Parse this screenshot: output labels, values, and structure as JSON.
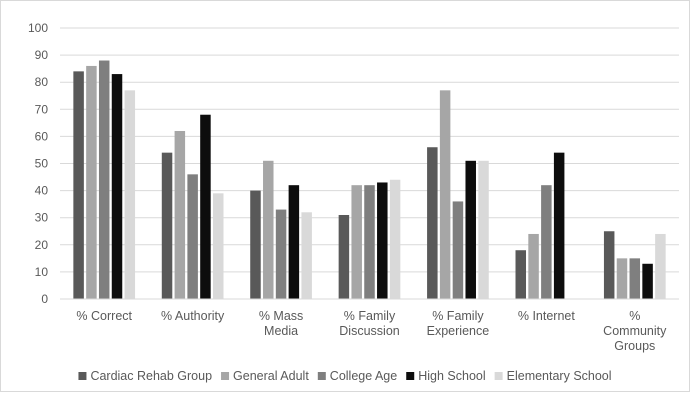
{
  "chart_data": {
    "type": "bar",
    "title": "",
    "xlabel": "",
    "ylabel": "",
    "ylim": [
      0,
      100
    ],
    "yticks": [
      0,
      10,
      20,
      30,
      40,
      50,
      60,
      70,
      80,
      90,
      100
    ],
    "grid": true,
    "legend_position": "bottom",
    "categories": [
      [
        "% Correct"
      ],
      [
        "% Authority"
      ],
      [
        "% Mass",
        "Media"
      ],
      [
        "% Family",
        "Discussion"
      ],
      [
        "% Family",
        "Experience"
      ],
      [
        "% Internet"
      ],
      [
        "%",
        "Community",
        "Groups"
      ]
    ],
    "series": [
      {
        "name": "Cardiac Rehab Group",
        "color": "#595959",
        "values": [
          84,
          54,
          40,
          31,
          56,
          18,
          25
        ]
      },
      {
        "name": "General Adult",
        "color": "#a6a6a6",
        "values": [
          86,
          62,
          51,
          42,
          77,
          24,
          15
        ]
      },
      {
        "name": "College Age",
        "color": "#7f7f7f",
        "values": [
          88,
          46,
          33,
          42,
          36,
          42,
          15
        ]
      },
      {
        "name": "High School",
        "color": "#0d0d0d",
        "values": [
          83,
          68,
          42,
          43,
          51,
          54,
          13
        ]
      },
      {
        "name": "Elementary School",
        "color": "#d9d9d9",
        "values": [
          77,
          39,
          32,
          44,
          51,
          0,
          24
        ]
      }
    ]
  }
}
